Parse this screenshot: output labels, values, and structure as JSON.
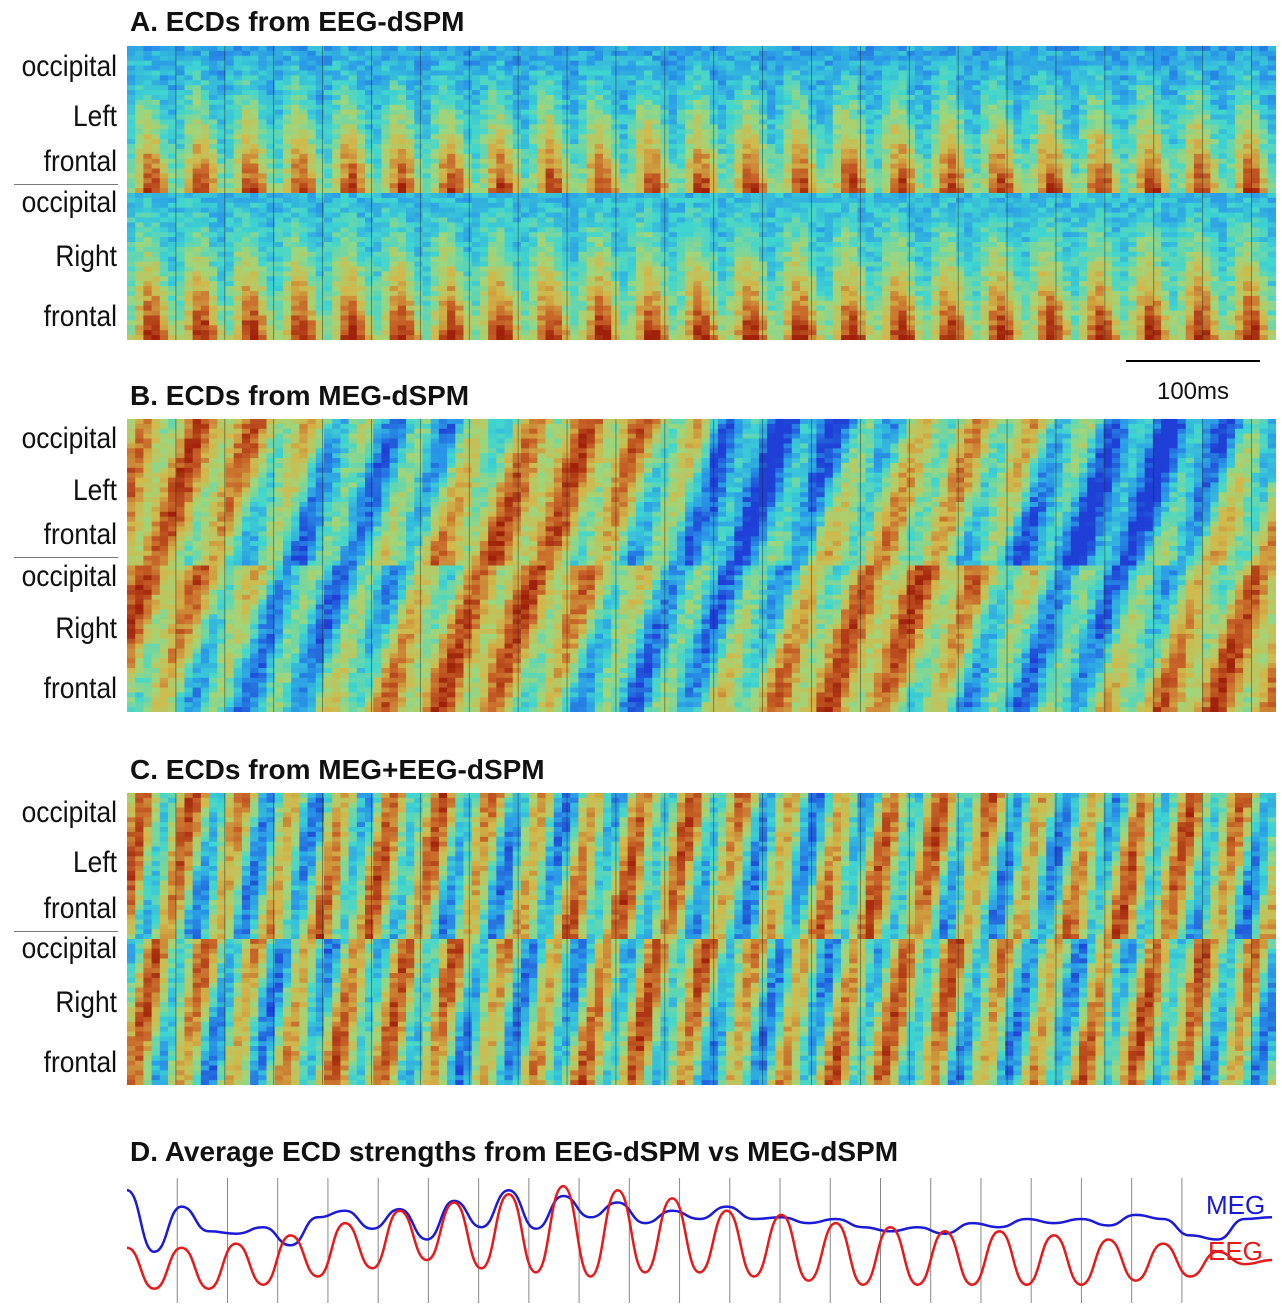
{
  "panels": [
    {
      "id": "A",
      "title": "A. ECDs from EEG-dSPM",
      "pattern": "eeg"
    },
    {
      "id": "B",
      "title": "B. ECDs  from MEG-dSPM",
      "pattern": "meg"
    },
    {
      "id": "C",
      "title": "C. ECDs  from MEG+EEG-dSPM",
      "pattern": "both"
    }
  ],
  "row_labels": {
    "left": [
      "occipital",
      "Left",
      "frontal"
    ],
    "right": [
      "occipital",
      "Right",
      "frontal"
    ]
  },
  "scale_bar": {
    "label": "100ms"
  },
  "panel_d": {
    "title": "D. Average ECD strengths from EEG-dSPM vs MEG-dSPM",
    "meg_label": "MEG",
    "eeg_label": "EEG"
  },
  "colors": {
    "meg": "#1a1ad8",
    "eeg": "#e61a1a",
    "colormap": [
      "#1f3fd6",
      "#2a9be8",
      "#3fd6d0",
      "#9fd67a",
      "#d2b84a",
      "#c86428",
      "#a0200a"
    ]
  },
  "chart_data": {
    "type": "line",
    "title": "D. Average ECD strengths from EEG-dSPM vs MEG-dSPM",
    "xlabel": "",
    "ylabel": "",
    "time_scale_ms_per_bar": 100,
    "gridlines": true,
    "series": [
      {
        "name": "MEG",
        "color": "#1a1ad8",
        "values": [
          0.95,
          0.2,
          0.75,
          0.45,
          0.42,
          0.5,
          0.28,
          0.62,
          0.7,
          0.48,
          0.72,
          0.35,
          0.82,
          0.5,
          0.95,
          0.48,
          0.88,
          0.62,
          0.8,
          0.55,
          0.7,
          0.6,
          0.75,
          0.6,
          0.62,
          0.55,
          0.6,
          0.5,
          0.45,
          0.5,
          0.42,
          0.55,
          0.5,
          0.6,
          0.55,
          0.6,
          0.52,
          0.65,
          0.6,
          0.4,
          0.35,
          0.6,
          0.62
        ]
      },
      {
        "name": "EEG",
        "color": "#e61a1a",
        "values": [
          0.25,
          -0.25,
          0.25,
          -0.25,
          0.3,
          -0.2,
          0.4,
          -0.1,
          0.55,
          0.0,
          0.7,
          0.1,
          0.8,
          0.0,
          0.9,
          -0.05,
          1.0,
          -0.1,
          0.95,
          -0.05,
          0.85,
          -0.05,
          0.7,
          -0.1,
          0.65,
          -0.15,
          0.55,
          -0.2,
          0.5,
          -0.2,
          0.45,
          -0.2,
          0.45,
          -0.2,
          0.4,
          -0.2,
          0.35,
          -0.15,
          0.3,
          -0.1,
          0.2,
          0.05,
          0.1
        ]
      }
    ]
  }
}
